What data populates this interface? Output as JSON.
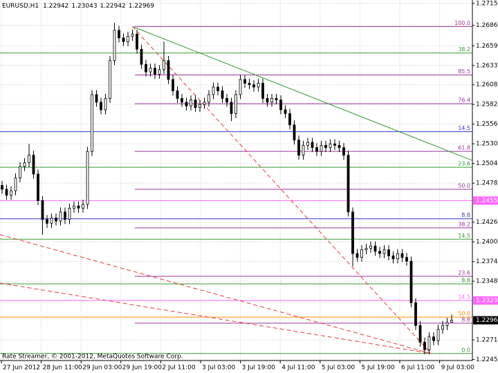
{
  "chart_data": {
    "type": "candlestick",
    "title": "EURUSD,H1",
    "footer": "Rate Streamer, © 2001-2012, MetaQuotes Software Corp.",
    "time_labels": [
      "27 Jun 2012",
      "28 Jun 11:00",
      "29 Jun 03:00",
      "29 Jun 19:00",
      "2 Jul 11:00",
      "3 Jul 03:00",
      "3 Jul 19:00",
      "4 Jul 11:00",
      "5 Jul 03:00",
      "5 Jul 19:00",
      "6 Jul 11:00",
      "9 Jul 03:00"
    ],
    "ylim": [
      1.224,
      1.272
    ],
    "yticks": [
      1.27155,
      1.26865,
      1.26595,
      1.26335,
      {
        "value": 1.2608,
        "label": "1.26080"
      },
      {
        "value": 1.2582,
        "label": "1.25820"
      },
      {
        "value": 1.2556,
        "label": "1.25560"
      },
      {
        "value": 1.253,
        "label": "1.25300"
      },
      {
        "value": 1.2504,
        "label": "1.25040"
      },
      {
        "value": 1.2478,
        "label": "1.24780"
      },
      1.24265,
      1.24005,
      1.23745,
      1.23485,
      {
        "value": 1.2271,
        "label": "1.22710"
      },
      {
        "value": 1.2245,
        "label": "1.22450"
      }
    ],
    "grid": true,
    "ohlc": [
      [
        1.2475,
        1.2481,
        1.2464,
        1.247
      ],
      [
        1.247,
        1.2476,
        1.2456,
        1.2462
      ],
      [
        1.2462,
        1.2474,
        1.2456,
        1.2468
      ],
      [
        1.2468,
        1.2491,
        1.2462,
        1.2485
      ],
      [
        1.2485,
        1.2506,
        1.2479,
        1.25
      ],
      [
        1.25,
        1.2511,
        1.2494,
        1.2505
      ],
      [
        1.2505,
        1.253,
        1.2499,
        1.2515
      ],
      [
        1.2515,
        1.2521,
        1.2484,
        1.249
      ],
      [
        1.249,
        1.2496,
        1.2449,
        1.2455
      ],
      [
        1.2455,
        1.2461,
        1.241,
        1.243
      ],
      [
        1.243,
        1.2436,
        1.2419,
        1.2425
      ],
      [
        1.2425,
        1.2438,
        1.2419,
        1.2432
      ],
      [
        1.2432,
        1.2438,
        1.2422,
        1.2428
      ],
      [
        1.2428,
        1.2446,
        1.2422,
        1.244
      ],
      [
        1.244,
        1.2446,
        1.2424,
        1.243
      ],
      [
        1.243,
        1.2451,
        1.2424,
        1.2445
      ],
      [
        1.2445,
        1.2454,
        1.2439,
        1.2448
      ],
      [
        1.2448,
        1.2454,
        1.2439,
        1.2445
      ],
      [
        1.2445,
        1.2456,
        1.2439,
        1.245
      ],
      [
        1.245,
        1.2526,
        1.2444,
        1.252
      ],
      [
        1.252,
        1.2601,
        1.2514,
        1.2595
      ],
      [
        1.2595,
        1.2601,
        1.2579,
        1.2585
      ],
      [
        1.2585,
        1.2591,
        1.2569,
        1.2575
      ],
      [
        1.2575,
        1.2596,
        1.2569,
        1.259
      ],
      [
        1.259,
        1.2646,
        1.2584,
        1.264
      ],
      [
        1.264,
        1.269,
        1.2634,
        1.268
      ],
      [
        1.268,
        1.2686,
        1.2664,
        1.267
      ],
      [
        1.267,
        1.2676,
        1.2659,
        1.2665
      ],
      [
        1.2665,
        1.2678,
        1.2659,
        1.2672
      ],
      [
        1.2672,
        1.2681,
        1.2666,
        1.2675
      ],
      [
        1.2675,
        1.2681,
        1.2649,
        1.2655
      ],
      [
        1.2655,
        1.2661,
        1.2629,
        1.2635
      ],
      [
        1.2635,
        1.2641,
        1.2619,
        1.2625
      ],
      [
        1.2625,
        1.2636,
        1.2619,
        1.263
      ],
      [
        1.263,
        1.2636,
        1.2616,
        1.2622
      ],
      [
        1.2622,
        1.2634,
        1.2616,
        1.2628
      ],
      [
        1.2628,
        1.2665,
        1.2622,
        1.264
      ],
      [
        1.264,
        1.2646,
        1.2609,
        1.2615
      ],
      [
        1.2615,
        1.2621,
        1.2594,
        1.26
      ],
      [
        1.26,
        1.2606,
        1.2584,
        1.259
      ],
      [
        1.259,
        1.2596,
        1.2579,
        1.2585
      ],
      [
        1.2585,
        1.2591,
        1.2574,
        1.258
      ],
      [
        1.258,
        1.2594,
        1.2574,
        1.2588
      ],
      [
        1.2588,
        1.2594,
        1.2572,
        1.2578
      ],
      [
        1.2578,
        1.2588,
        1.2572,
        1.2582
      ],
      [
        1.2582,
        1.2591,
        1.2576,
        1.2585
      ],
      [
        1.2585,
        1.2601,
        1.2579,
        1.2595
      ],
      [
        1.2595,
        1.2611,
        1.2589,
        1.2605
      ],
      [
        1.2605,
        1.2611,
        1.2594,
        1.26
      ],
      [
        1.26,
        1.2606,
        1.2584,
        1.259
      ],
      [
        1.259,
        1.2596,
        1.2579,
        1.2585
      ],
      [
        1.2585,
        1.2591,
        1.256,
        1.257
      ],
      [
        1.257,
        1.2601,
        1.2564,
        1.2595
      ],
      [
        1.2595,
        1.2621,
        1.2589,
        1.2615
      ],
      [
        1.2615,
        1.2621,
        1.2604,
        1.261
      ],
      [
        1.261,
        1.2616,
        1.2602,
        1.2608
      ],
      [
        1.2608,
        1.2614,
        1.2599,
        1.2605
      ],
      [
        1.2605,
        1.2616,
        1.2599,
        1.261
      ],
      [
        1.261,
        1.2616,
        1.2584,
        1.259
      ],
      [
        1.259,
        1.2596,
        1.2579,
        1.2585
      ],
      [
        1.2585,
        1.2596,
        1.2579,
        1.259
      ],
      [
        1.259,
        1.2596,
        1.2582,
        1.2588
      ],
      [
        1.2588,
        1.2594,
        1.2569,
        1.2575
      ],
      [
        1.2575,
        1.2581,
        1.2564,
        1.257
      ],
      [
        1.257,
        1.2576,
        1.2549,
        1.2555
      ],
      [
        1.2555,
        1.2561,
        1.2529,
        1.2535
      ],
      [
        1.2535,
        1.2541,
        1.2509,
        1.2515
      ],
      [
        1.2515,
        1.2534,
        1.2509,
        1.2528
      ],
      [
        1.2528,
        1.2538,
        1.2522,
        1.2532
      ],
      [
        1.2532,
        1.2538,
        1.2519,
        1.2525
      ],
      [
        1.2525,
        1.2531,
        1.2514,
        1.252
      ],
      [
        1.252,
        1.2534,
        1.2514,
        1.2528
      ],
      [
        1.2528,
        1.2534,
        1.2519,
        1.2525
      ],
      [
        1.2525,
        1.2536,
        1.2519,
        1.253
      ],
      [
        1.253,
        1.2536,
        1.2522,
        1.2528
      ],
      [
        1.2528,
        1.2534,
        1.2519,
        1.2525
      ],
      [
        1.2525,
        1.2531,
        1.2509,
        1.2515
      ],
      [
        1.2515,
        1.2521,
        1.2434,
        1.244
      ],
      [
        1.244,
        1.2446,
        1.2368,
        1.2385
      ],
      [
        1.2385,
        1.2391,
        1.2374,
        1.238
      ],
      [
        1.238,
        1.2396,
        1.2374,
        1.239
      ],
      [
        1.239,
        1.2398,
        1.2384,
        1.2392
      ],
      [
        1.2392,
        1.2401,
        1.2386,
        1.2395
      ],
      [
        1.2395,
        1.2401,
        1.2382,
        1.2388
      ],
      [
        1.2388,
        1.2394,
        1.2379,
        1.2385
      ],
      [
        1.2385,
        1.2396,
        1.2379,
        1.239
      ],
      [
        1.239,
        1.2396,
        1.2376,
        1.2382
      ],
      [
        1.2382,
        1.2388,
        1.2372,
        1.2378
      ],
      [
        1.2378,
        1.2391,
        1.2372,
        1.2385
      ],
      [
        1.2385,
        1.2391,
        1.2374,
        1.238
      ],
      [
        1.238,
        1.2386,
        1.2369,
        1.2375
      ],
      [
        1.2375,
        1.2381,
        1.2314,
        1.232
      ],
      [
        1.232,
        1.2326,
        1.2284,
        1.229
      ],
      [
        1.229,
        1.2296,
        1.2262,
        1.2268
      ],
      [
        1.2268,
        1.2274,
        1.2252,
        1.2258
      ],
      [
        1.2258,
        1.2281,
        1.2252,
        1.2275
      ],
      [
        1.2275,
        1.2281,
        1.2264,
        1.227
      ],
      [
        1.227,
        1.2291,
        1.2264,
        1.2285
      ],
      [
        1.2285,
        1.2296,
        1.2279,
        1.229
      ],
      [
        1.229,
        1.23,
        1.2284,
        1.2294
      ],
      [
        1.22942,
        1.23043,
        1.22942,
        1.22969
      ]
    ],
    "levels": [
      {
        "price": 1.265,
        "color": "#339933",
        "label": "38.2",
        "full": true
      },
      {
        "price": 1.2546,
        "color": "#3333cc",
        "label": "14.5",
        "full": true
      },
      {
        "price": 1.2499,
        "color": "#339933",
        "label": "23.6",
        "full": true
      },
      {
        "price": 1.2455,
        "color": "#ff66ff",
        "full": true
      },
      {
        "price": 1.2431,
        "color": "#3333cc",
        "label": "8.8",
        "full": true
      },
      {
        "price": 1.2404,
        "color": "#339933",
        "label": "14.5",
        "full": true
      },
      {
        "price": 1.2345,
        "color": "#339933",
        "label": "8.8",
        "full": true
      },
      {
        "price": 1.2323,
        "color": "#ff66ff",
        "label": "14.5",
        "full": true
      },
      {
        "price": 1.2301,
        "color": "#ff8c00",
        "label": "50.0",
        "full": true
      },
      {
        "price": 1.2253,
        "color": "#339933",
        "label": "0.0",
        "full": true
      },
      {
        "price": 1.2685,
        "color": "#993399",
        "label": "100.0",
        "full": false
      },
      {
        "price": 1.2621,
        "color": "#993399",
        "label": "85.5",
        "full": false
      },
      {
        "price": 1.2583,
        "color": "#993399",
        "label": "76.4",
        "full": false
      },
      {
        "price": 1.252,
        "color": "#993399",
        "label": "61.8",
        "full": false
      },
      {
        "price": 1.247,
        "color": "#993399",
        "label": "50.0",
        "full": false
      },
      {
        "price": 1.2419,
        "color": "#993399",
        "label": "38.2",
        "full": false
      },
      {
        "price": 1.2355,
        "color": "#993399",
        "label": "23.6",
        "full": false
      },
      {
        "price": 1.2293,
        "color": "#993399",
        "label": "8.8",
        "full": false
      }
    ],
    "trendlines": [
      {
        "x": [
          29,
          104.6
        ],
        "y": [
          1.2685,
          1.2508
        ],
        "color": "#339933",
        "dashed": false
      },
      {
        "x": [
          29,
          95.4
        ],
        "y": [
          1.2685,
          1.2253
        ],
        "color": "#ee3333",
        "dashed": true
      },
      {
        "x": [
          -0.46,
          95.4
        ],
        "y": [
          1.241,
          1.2253
        ],
        "color": "#ee3333",
        "dashed": true
      },
      {
        "x": [
          -0.46,
          95.4
        ],
        "y": [
          1.2346,
          1.2253
        ],
        "color": "#ee3333",
        "dashed": true
      }
    ],
    "price_labels": [
      {
        "value": 1.2455,
        "label": "1.24550",
        "color": "#ff66ff"
      },
      {
        "value": 1.2323,
        "label": "1.23230",
        "color": "#ff66ff"
      }
    ]
  }
}
